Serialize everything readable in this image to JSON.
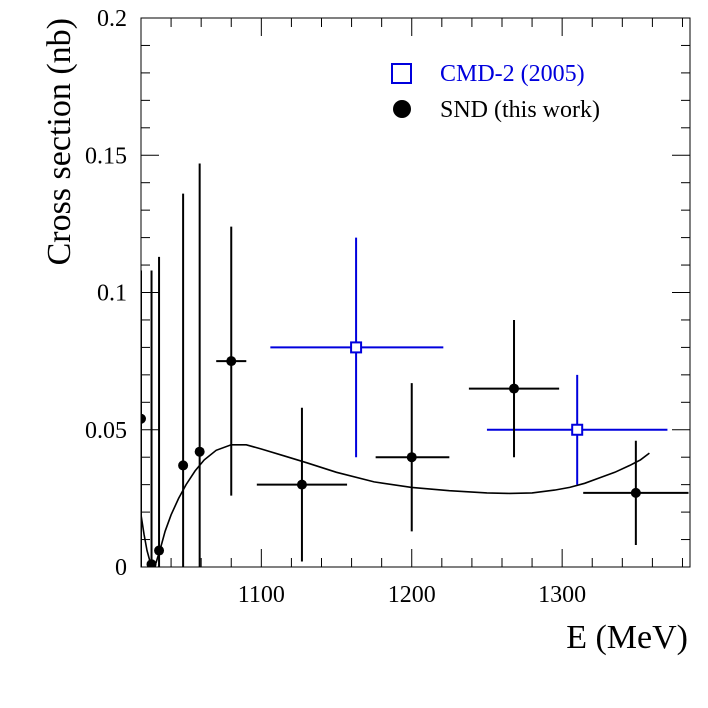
{
  "chart_data": {
    "type": "scatter",
    "title": "",
    "xlabel": "E (MeV)",
    "ylabel": "Cross section (nb)",
    "xlim": [
      1020,
      1385
    ],
    "ylim": [
      0,
      0.2
    ],
    "x_ticks": [
      1100,
      1200,
      1300
    ],
    "x_tick_labels": [
      "1100",
      "1200",
      "1300"
    ],
    "y_ticks": [
      0,
      0.05,
      0.1,
      0.15,
      0.2
    ],
    "y_tick_labels": [
      "0",
      "0.05",
      "0.1",
      "0.15",
      "0.2"
    ],
    "grid": false,
    "legend_position": "top-right",
    "series": [
      {
        "name": "CMD-2 (2005)",
        "marker": "open-square",
        "color": "#0000dd",
        "points": [
          {
            "x": 1163,
            "y": 0.08,
            "xerr": [
              57,
              58
            ],
            "yerr": [
              0.04,
              0.04
            ]
          },
          {
            "x": 1310,
            "y": 0.05,
            "xerr": [
              60,
              60
            ],
            "yerr": [
              0.02,
              0.02
            ]
          }
        ]
      },
      {
        "name": "SND (this work)",
        "marker": "filled-circle",
        "color": "#000000",
        "points": [
          {
            "x": 1020,
            "y": 0.054,
            "xerr": [
              0,
              0
            ],
            "yerr": [
              0.054,
              0.054
            ]
          },
          {
            "x": 1027,
            "y": 0.001,
            "xerr": [
              0,
              0
            ],
            "yerr": [
              0.001,
              0.107
            ]
          },
          {
            "x": 1032,
            "y": 0.006,
            "xerr": [
              0,
              0
            ],
            "yerr": [
              0.006,
              0.107
            ]
          },
          {
            "x": 1048,
            "y": 0.037,
            "xerr": [
              0,
              0
            ],
            "yerr": [
              0.037,
              0.099
            ]
          },
          {
            "x": 1059,
            "y": 0.042,
            "xerr": [
              0,
              0
            ],
            "yerr": [
              0.042,
              0.105
            ]
          },
          {
            "x": 1080,
            "y": 0.075,
            "xerr": [
              10,
              10
            ],
            "yerr": [
              0.049,
              0.049
            ]
          },
          {
            "x": 1127,
            "y": 0.03,
            "xerr": [
              30,
              30
            ],
            "yerr": [
              0.028,
              0.028
            ]
          },
          {
            "x": 1200,
            "y": 0.04,
            "xerr": [
              24,
              25
            ],
            "yerr": [
              0.027,
              0.027
            ]
          },
          {
            "x": 1268,
            "y": 0.065,
            "xerr": [
              30,
              30
            ],
            "yerr": [
              0.025,
              0.025
            ]
          },
          {
            "x": 1349,
            "y": 0.027,
            "xerr": [
              35,
              35
            ],
            "yerr": [
              0.019,
              0.019
            ]
          }
        ]
      },
      {
        "name": "fit curve",
        "type": "line",
        "color": "#000000",
        "x": [
          1020,
          1022,
          1024,
          1026,
          1028,
          1030,
          1033,
          1036,
          1040,
          1045,
          1050,
          1056,
          1062,
          1070,
          1080,
          1090,
          1100,
          1115,
          1130,
          1150,
          1175,
          1200,
          1225,
          1250,
          1265,
          1280,
          1295,
          1305,
          1315,
          1325,
          1335,
          1345,
          1352,
          1358
        ],
        "y": [
          0.019,
          0.012,
          0.006,
          0.002,
          0.0005,
          0.0015,
          0.007,
          0.013,
          0.019,
          0.025,
          0.03,
          0.035,
          0.039,
          0.0425,
          0.0445,
          0.0445,
          0.043,
          0.0405,
          0.038,
          0.0345,
          0.031,
          0.029,
          0.0278,
          0.027,
          0.0268,
          0.027,
          0.028,
          0.029,
          0.0305,
          0.0325,
          0.0345,
          0.037,
          0.039,
          0.0415
        ]
      }
    ]
  }
}
